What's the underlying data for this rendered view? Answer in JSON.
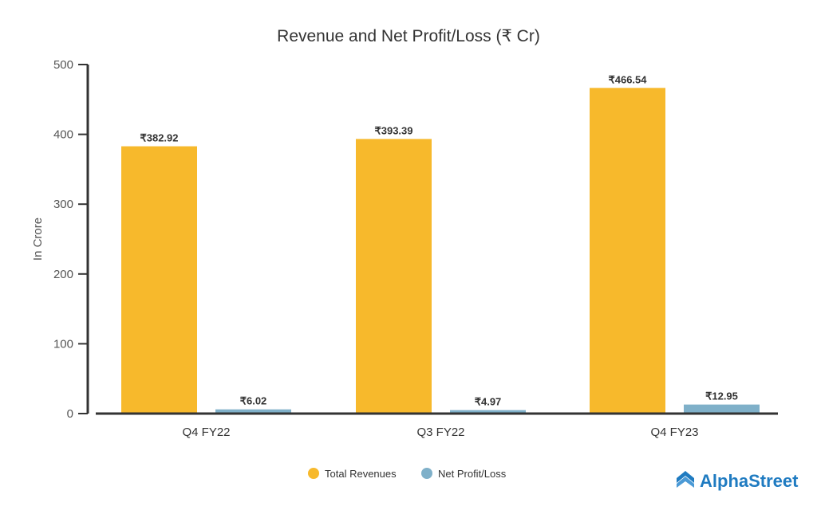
{
  "chart_data": {
    "type": "bar",
    "title": "Revenue and Net Profit/Loss (₹ Cr)",
    "xlabel": "",
    "ylabel": "In Crore",
    "ylim": [
      0,
      500
    ],
    "yticks": [
      0,
      100,
      200,
      300,
      400,
      500
    ],
    "grid": false,
    "legend_position": "bottom",
    "categories": [
      "Q4 FY22",
      "Q3 FY22",
      "Q4 FY23"
    ],
    "series": [
      {
        "name": "Total Revenues",
        "color": "#f7b92c",
        "values": [
          382.92,
          393.39,
          466.54
        ],
        "labels": [
          "₹382.92",
          "₹393.39",
          "₹466.54"
        ]
      },
      {
        "name": "Net Profit/Loss",
        "color": "#7fb0c9",
        "values": [
          6.02,
          4.97,
          12.95
        ],
        "labels": [
          "₹6.02",
          "₹4.97",
          "₹12.95"
        ]
      }
    ]
  },
  "brand": {
    "name": "AlphaStreet",
    "color": "#1f7bc1"
  }
}
